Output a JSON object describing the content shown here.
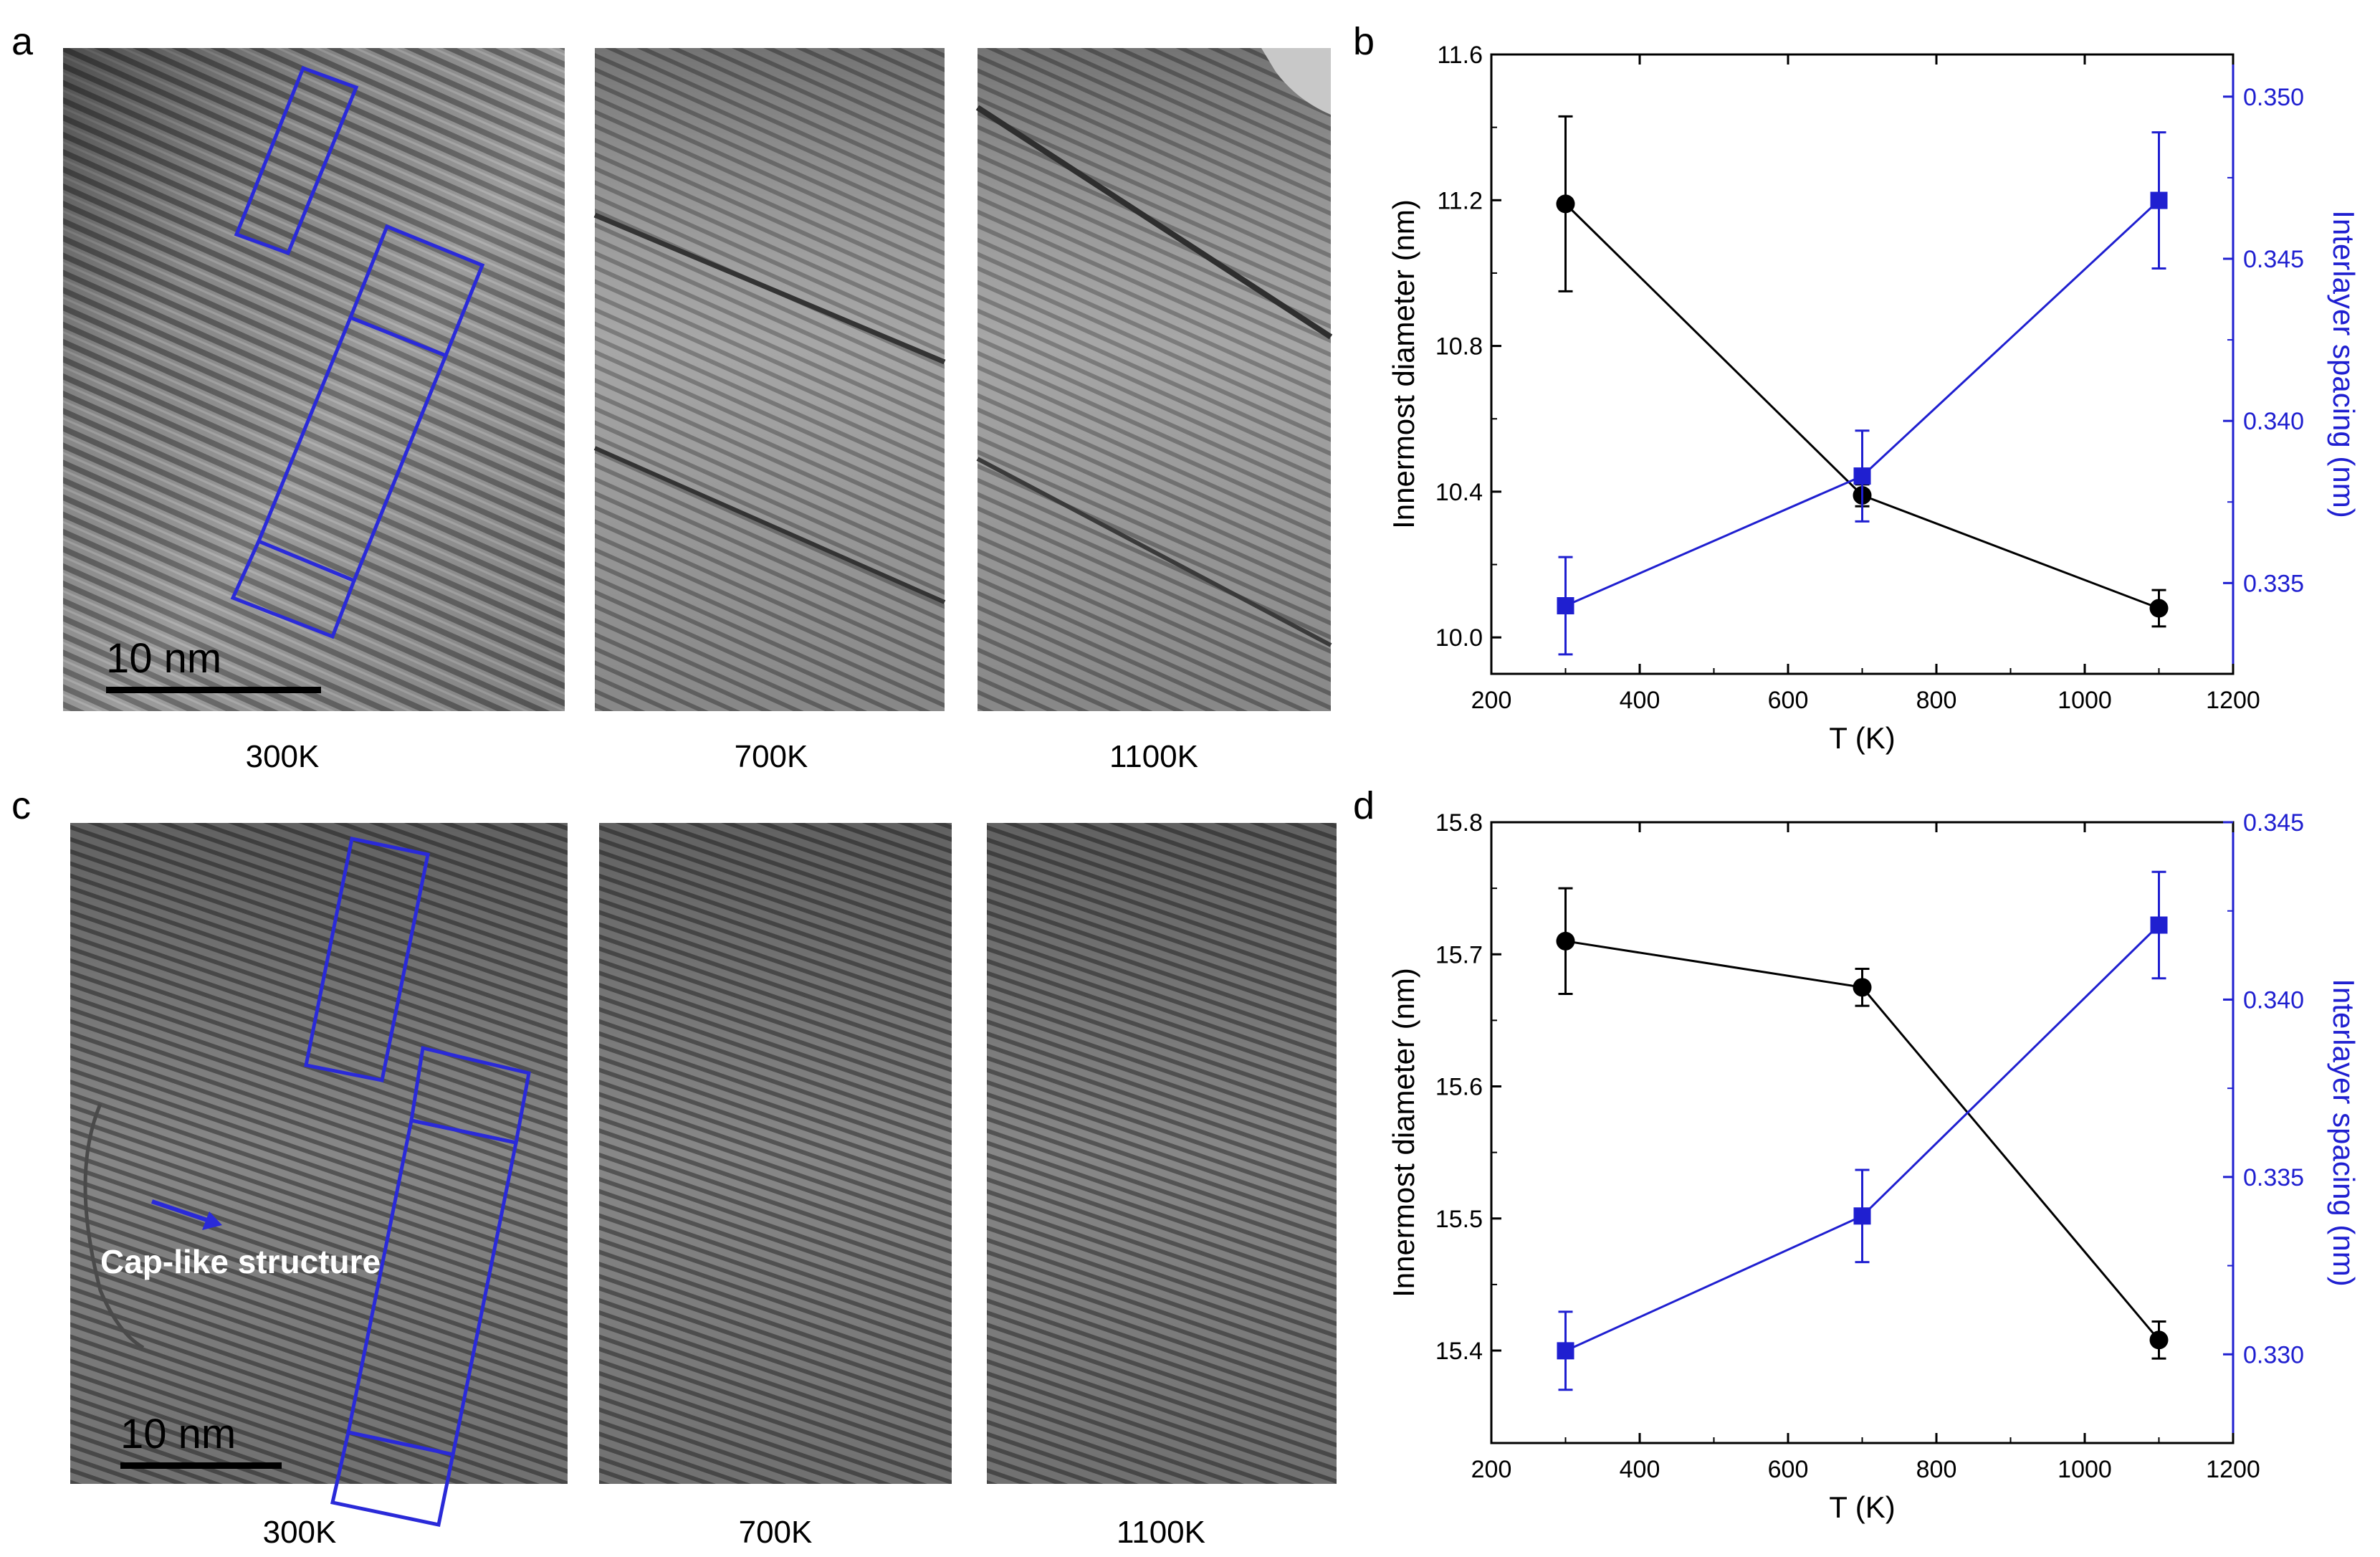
{
  "panels": {
    "a": {
      "letter": "a",
      "scale_bar": "10 nm",
      "captions": [
        "300K",
        "700K",
        "1100K"
      ]
    },
    "c": {
      "letter": "c",
      "scale_bar": "10 nm",
      "annotation": "Cap-like structure",
      "captions": [
        "300K",
        "700K",
        "1100K"
      ]
    }
  },
  "colors": {
    "left_series": "#000000",
    "right_series": "#1f1fd0",
    "box": "#2a2ad8"
  },
  "chart_data": [
    {
      "panel": "b",
      "type": "line",
      "xlabel": "T (K)",
      "ylabel": "Innermost diameter (nm)",
      "y2label": "Interlayer spacing (nm)",
      "xlim": [
        200,
        1200
      ],
      "ylim": [
        9.9,
        11.6
      ],
      "y2lim": [
        0.3322,
        0.3513
      ],
      "xticks": [
        200,
        400,
        600,
        800,
        1000,
        1200
      ],
      "yticks": [
        10.0,
        10.4,
        10.8,
        11.2,
        11.6
      ],
      "ytick_labels": [
        "10.0",
        "10.4",
        "10.8",
        "11.2",
        "11.6"
      ],
      "y2ticks": [
        0.335,
        0.34,
        0.345,
        0.35
      ],
      "y2tick_labels": [
        "0.335",
        "0.340",
        "0.345",
        "0.350"
      ],
      "series": [
        {
          "name": "Innermost diameter",
          "axis": "left",
          "marker": "circle",
          "x": [
            300,
            700,
            1100
          ],
          "y": [
            11.19,
            10.39,
            10.08
          ],
          "err": [
            0.24,
            0.03,
            0.05
          ]
        },
        {
          "name": "Interlayer spacing",
          "axis": "right",
          "marker": "square",
          "x": [
            300,
            700,
            1100
          ],
          "y": [
            0.3343,
            0.3383,
            0.3468
          ],
          "err": [
            0.0015,
            0.0014,
            0.0021
          ]
        }
      ]
    },
    {
      "panel": "d",
      "type": "line",
      "xlabel": "T (K)",
      "ylabel": "Innermost diameter (nm)",
      "y2label": "Interlayer spacing (nm)",
      "xlim": [
        200,
        1200
      ],
      "ylim": [
        15.33,
        15.8
      ],
      "y2lim": [
        0.3275,
        0.345
      ],
      "xticks": [
        200,
        400,
        600,
        800,
        1000,
        1200
      ],
      "yticks": [
        15.4,
        15.5,
        15.6,
        15.7,
        15.8
      ],
      "ytick_labels": [
        "15.4",
        "15.5",
        "15.6",
        "15.7",
        "15.8"
      ],
      "y2ticks": [
        0.33,
        0.335,
        0.34,
        0.345
      ],
      "y2tick_labels": [
        "0.330",
        "0.335",
        "0.340",
        "0.345"
      ],
      "series": [
        {
          "name": "Innermost diameter",
          "axis": "left",
          "marker": "circle",
          "x": [
            300,
            700,
            1100
          ],
          "y": [
            15.71,
            15.675,
            15.408
          ],
          "err": [
            0.04,
            0.014,
            0.014
          ]
        },
        {
          "name": "Interlayer spacing",
          "axis": "right",
          "marker": "square",
          "x": [
            300,
            700,
            1100
          ],
          "y": [
            0.3301,
            0.3339,
            0.3421
          ],
          "err": [
            0.0011,
            0.0013,
            0.0015
          ]
        }
      ]
    }
  ]
}
